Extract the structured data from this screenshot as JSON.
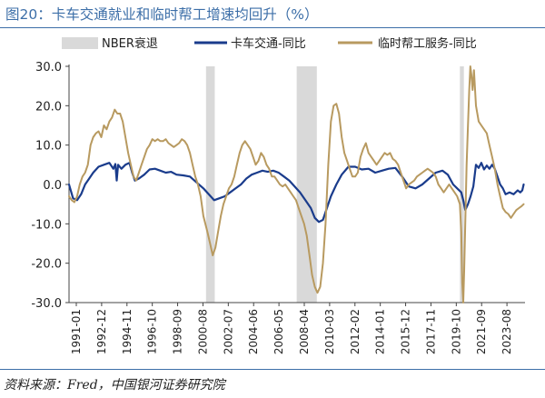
{
  "figure_title": "图20：卡车交通就业和临时帮工增速均回升（%）",
  "source_note": "资料来源：Fred，中国银河证券研究院",
  "colors": {
    "title": "#3d6fa8",
    "recession": "#d9d9d9",
    "truck": "#1a3c8c",
    "temp": "#b89a60",
    "axis": "#444444"
  },
  "chart_data": {
    "type": "line",
    "ylim": [
      -30,
      30
    ],
    "yticks": [
      "30.0",
      "20.0",
      "10.0",
      "0.0",
      "-10.0",
      "-20.0",
      "-30.0"
    ],
    "yticks_values": [
      30,
      20,
      10,
      0,
      -10,
      -20,
      -30
    ],
    "xlim": [
      1991.0,
      2024.95
    ],
    "xticks": [
      "1991-01",
      "1992-12",
      "1994-11",
      "1996-10",
      "1998-09",
      "2000-08",
      "2002-07",
      "2004-06",
      "2006-05",
      "2008-04",
      "2010-03",
      "2012-02",
      "2014-01",
      "2015-12",
      "2017-11",
      "2019-10",
      "2021-09",
      "2023-08"
    ],
    "grid": false,
    "legend_position": "top",
    "legend": [
      "NBER衰退",
      "卡车交通-同比",
      "临时帮工服务-同比"
    ],
    "recessions": [
      {
        "start": 2001.2,
        "end": 2001.85
      },
      {
        "start": 2007.95,
        "end": 2009.45
      },
      {
        "start": 2020.1,
        "end": 2020.4
      }
    ],
    "series": [
      {
        "name": "卡车交通-同比",
        "color_key": "truck",
        "points": [
          [
            1991.0,
            0
          ],
          [
            1991.3,
            -3.5
          ],
          [
            1991.6,
            -4
          ],
          [
            1991.9,
            -2.5
          ],
          [
            1992.2,
            0
          ],
          [
            1992.5,
            1.5
          ],
          [
            1992.8,
            3
          ],
          [
            1993.2,
            4.5
          ],
          [
            1993.6,
            5
          ],
          [
            1994.0,
            5.5
          ],
          [
            1994.3,
            4
          ],
          [
            1994.45,
            5.2
          ],
          [
            1994.55,
            1
          ],
          [
            1994.65,
            5
          ],
          [
            1994.9,
            4
          ],
          [
            1995.2,
            5
          ],
          [
            1995.5,
            5.5
          ],
          [
            1995.7,
            3
          ],
          [
            1995.9,
            1
          ],
          [
            1996.2,
            1.5
          ],
          [
            1996.6,
            2.5
          ],
          [
            1997.0,
            3.8
          ],
          [
            1997.4,
            4
          ],
          [
            1997.8,
            3.5
          ],
          [
            1998.2,
            3
          ],
          [
            1998.6,
            3.2
          ],
          [
            1999.0,
            2.5
          ],
          [
            1999.5,
            2.3
          ],
          [
            2000.0,
            2
          ],
          [
            2000.5,
            0.5
          ],
          [
            2001.0,
            -1
          ],
          [
            2001.4,
            -2.5
          ],
          [
            2001.8,
            -4
          ],
          [
            2002.2,
            -3.5
          ],
          [
            2002.6,
            -3
          ],
          [
            2003.0,
            -2
          ],
          [
            2003.4,
            -1
          ],
          [
            2003.8,
            0
          ],
          [
            2004.2,
            1.5
          ],
          [
            2004.6,
            2.5
          ],
          [
            2005.0,
            3
          ],
          [
            2005.4,
            3.5
          ],
          [
            2005.8,
            3.2
          ],
          [
            2006.2,
            3.5
          ],
          [
            2006.6,
            3
          ],
          [
            2007.0,
            2
          ],
          [
            2007.4,
            1
          ],
          [
            2007.8,
            -0.5
          ],
          [
            2008.2,
            -2
          ],
          [
            2008.6,
            -4
          ],
          [
            2009.0,
            -6
          ],
          [
            2009.3,
            -8.5
          ],
          [
            2009.6,
            -9.5
          ],
          [
            2009.9,
            -9
          ],
          [
            2010.2,
            -6
          ],
          [
            2010.5,
            -3
          ],
          [
            2010.9,
            0
          ],
          [
            2011.3,
            2.5
          ],
          [
            2011.8,
            4.5
          ],
          [
            2012.3,
            4.5
          ],
          [
            2012.8,
            3.8
          ],
          [
            2013.3,
            4
          ],
          [
            2013.8,
            3
          ],
          [
            2014.3,
            3.5
          ],
          [
            2014.8,
            4
          ],
          [
            2015.3,
            4.2
          ],
          [
            2015.8,
            2
          ],
          [
            2016.3,
            -0.5
          ],
          [
            2016.8,
            -1
          ],
          [
            2017.3,
            0
          ],
          [
            2017.8,
            1.5
          ],
          [
            2018.3,
            3
          ],
          [
            2018.8,
            3.5
          ],
          [
            2019.2,
            2.5
          ],
          [
            2019.6,
            0
          ],
          [
            2019.9,
            -1
          ],
          [
            2020.2,
            -2
          ],
          [
            2020.35,
            -4
          ],
          [
            2020.5,
            -6.5
          ],
          [
            2020.7,
            -5
          ],
          [
            2020.9,
            -3
          ],
          [
            2021.1,
            -0.5
          ],
          [
            2021.3,
            5
          ],
          [
            2021.5,
            4.2
          ],
          [
            2021.7,
            5.5
          ],
          [
            2021.9,
            3.8
          ],
          [
            2022.1,
            4.8
          ],
          [
            2022.3,
            4
          ],
          [
            2022.5,
            5
          ],
          [
            2022.7,
            4
          ],
          [
            2022.9,
            2
          ],
          [
            2023.1,
            0
          ],
          [
            2023.3,
            -1
          ],
          [
            2023.5,
            -2.5
          ],
          [
            2023.8,
            -2
          ],
          [
            2024.1,
            -2.5
          ],
          [
            2024.4,
            -1.5
          ],
          [
            2024.6,
            -2
          ],
          [
            2024.75,
            -1.5
          ],
          [
            2024.85,
            0
          ]
        ]
      },
      {
        "name": "临时帮工服务-同比",
        "color_key": "temp",
        "points": [
          [
            1991.0,
            -3
          ],
          [
            1991.2,
            -4
          ],
          [
            1991.4,
            -4.5
          ],
          [
            1991.6,
            -3
          ],
          [
            1991.8,
            0
          ],
          [
            1992.0,
            2
          ],
          [
            1992.2,
            3
          ],
          [
            1992.4,
            5
          ],
          [
            1992.6,
            10
          ],
          [
            1992.8,
            12
          ],
          [
            1993.0,
            13
          ],
          [
            1993.2,
            13.5
          ],
          [
            1993.4,
            12
          ],
          [
            1993.6,
            15
          ],
          [
            1993.8,
            14
          ],
          [
            1994.0,
            16
          ],
          [
            1994.2,
            17
          ],
          [
            1994.4,
            19
          ],
          [
            1994.6,
            18
          ],
          [
            1994.8,
            18
          ],
          [
            1995.0,
            16
          ],
          [
            1995.2,
            12
          ],
          [
            1995.4,
            8
          ],
          [
            1995.6,
            5
          ],
          [
            1995.8,
            2
          ],
          [
            1996.0,
            1
          ],
          [
            1996.2,
            3
          ],
          [
            1996.4,
            5
          ],
          [
            1996.6,
            7
          ],
          [
            1996.8,
            9
          ],
          [
            1997.0,
            10
          ],
          [
            1997.2,
            11.5
          ],
          [
            1997.4,
            11
          ],
          [
            1997.6,
            11.5
          ],
          [
            1997.8,
            11
          ],
          [
            1998.0,
            11
          ],
          [
            1998.2,
            11.5
          ],
          [
            1998.4,
            10.5
          ],
          [
            1998.6,
            10
          ],
          [
            1998.8,
            9.5
          ],
          [
            1999.0,
            10
          ],
          [
            1999.2,
            10.5
          ],
          [
            1999.4,
            11.5
          ],
          [
            1999.6,
            11
          ],
          [
            1999.8,
            10
          ],
          [
            2000.0,
            8
          ],
          [
            2000.2,
            5
          ],
          [
            2000.4,
            2
          ],
          [
            2000.6,
            0
          ],
          [
            2000.8,
            -3
          ],
          [
            2001.0,
            -8
          ],
          [
            2001.3,
            -12
          ],
          [
            2001.5,
            -15
          ],
          [
            2001.7,
            -18
          ],
          [
            2001.9,
            -16
          ],
          [
            2002.1,
            -12
          ],
          [
            2002.3,
            -8
          ],
          [
            2002.5,
            -5
          ],
          [
            2002.7,
            -3
          ],
          [
            2002.9,
            -1
          ],
          [
            2003.1,
            0
          ],
          [
            2003.3,
            2
          ],
          [
            2003.5,
            5
          ],
          [
            2003.7,
            8
          ],
          [
            2003.9,
            10
          ],
          [
            2004.1,
            11
          ],
          [
            2004.3,
            10
          ],
          [
            2004.5,
            9
          ],
          [
            2004.7,
            7
          ],
          [
            2004.9,
            5
          ],
          [
            2005.1,
            6
          ],
          [
            2005.3,
            8
          ],
          [
            2005.5,
            7
          ],
          [
            2005.7,
            5
          ],
          [
            2005.9,
            4
          ],
          [
            2006.1,
            2
          ],
          [
            2006.3,
            2
          ],
          [
            2006.5,
            1
          ],
          [
            2006.7,
            0
          ],
          [
            2006.9,
            -0.5
          ],
          [
            2007.1,
            0
          ],
          [
            2007.3,
            -1
          ],
          [
            2007.5,
            -2
          ],
          [
            2007.7,
            -3
          ],
          [
            2007.9,
            -4
          ],
          [
            2008.1,
            -6
          ],
          [
            2008.3,
            -8
          ],
          [
            2008.5,
            -10
          ],
          [
            2008.7,
            -13
          ],
          [
            2008.9,
            -18
          ],
          [
            2009.1,
            -23
          ],
          [
            2009.3,
            -26
          ],
          [
            2009.5,
            -27.5
          ],
          [
            2009.7,
            -26
          ],
          [
            2009.9,
            -20
          ],
          [
            2010.1,
            -10
          ],
          [
            2010.3,
            5
          ],
          [
            2010.5,
            16
          ],
          [
            2010.7,
            20
          ],
          [
            2010.9,
            20.5
          ],
          [
            2011.1,
            18
          ],
          [
            2011.3,
            12
          ],
          [
            2011.5,
            8
          ],
          [
            2011.7,
            6
          ],
          [
            2011.9,
            4
          ],
          [
            2012.1,
            2
          ],
          [
            2012.3,
            2
          ],
          [
            2012.5,
            3
          ],
          [
            2012.7,
            7
          ],
          [
            2012.9,
            9
          ],
          [
            2013.1,
            10.5
          ],
          [
            2013.3,
            8
          ],
          [
            2013.5,
            7
          ],
          [
            2013.7,
            6
          ],
          [
            2013.9,
            5
          ],
          [
            2014.1,
            6
          ],
          [
            2014.3,
            7
          ],
          [
            2014.5,
            8
          ],
          [
            2014.7,
            7.5
          ],
          [
            2014.9,
            8
          ],
          [
            2015.1,
            6.5
          ],
          [
            2015.3,
            6
          ],
          [
            2015.5,
            5
          ],
          [
            2015.7,
            3
          ],
          [
            2015.9,
            1
          ],
          [
            2016.1,
            -1
          ],
          [
            2016.3,
            0
          ],
          [
            2016.5,
            0.5
          ],
          [
            2016.7,
            1
          ],
          [
            2016.9,
            2
          ],
          [
            2017.1,
            2.5
          ],
          [
            2017.3,
            3
          ],
          [
            2017.5,
            3.5
          ],
          [
            2017.7,
            4
          ],
          [
            2017.9,
            3.5
          ],
          [
            2018.1,
            3
          ],
          [
            2018.3,
            2
          ],
          [
            2018.5,
            0
          ],
          [
            2018.7,
            -1
          ],
          [
            2018.9,
            -2
          ],
          [
            2019.1,
            -1
          ],
          [
            2019.3,
            0
          ],
          [
            2019.5,
            -1
          ],
          [
            2019.7,
            -2
          ],
          [
            2019.9,
            -3
          ],
          [
            2020.1,
            -5
          ],
          [
            2020.2,
            -12
          ],
          [
            2020.28,
            -25
          ],
          [
            2020.35,
            -30
          ],
          [
            2020.42,
            -22
          ],
          [
            2020.5,
            -10
          ],
          [
            2020.6,
            5
          ],
          [
            2020.7,
            15
          ],
          [
            2020.8,
            24
          ],
          [
            2020.88,
            30
          ],
          [
            2020.95,
            28
          ],
          [
            2021.05,
            24
          ],
          [
            2021.15,
            29
          ],
          [
            2021.3,
            20
          ],
          [
            2021.5,
            16
          ],
          [
            2021.7,
            15
          ],
          [
            2021.9,
            14
          ],
          [
            2022.1,
            13
          ],
          [
            2022.3,
            10
          ],
          [
            2022.5,
            7
          ],
          [
            2022.7,
            4
          ],
          [
            2022.9,
            0
          ],
          [
            2023.1,
            -3
          ],
          [
            2023.3,
            -6
          ],
          [
            2023.5,
            -7
          ],
          [
            2023.7,
            -7.5
          ],
          [
            2023.9,
            -8.5
          ],
          [
            2024.1,
            -7.5
          ],
          [
            2024.3,
            -6.5
          ],
          [
            2024.5,
            -6
          ],
          [
            2024.7,
            -5.5
          ],
          [
            2024.85,
            -5
          ]
        ]
      }
    ]
  }
}
